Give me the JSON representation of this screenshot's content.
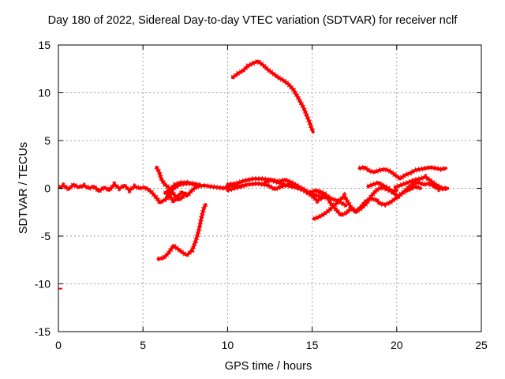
{
  "chart_data": {
    "type": "line",
    "title": "Day 180 of 2022, Sidereal Day-to-day VTEC variation (SDTVAR) for receiver nclf",
    "xlabel": "GPS time / hours",
    "ylabel": "SDTVAR / TECUs",
    "xlim": [
      0,
      25
    ],
    "ylim": [
      -15,
      15
    ],
    "x_ticks": [
      0,
      5,
      10,
      15,
      20,
      25
    ],
    "y_ticks": [
      -15,
      -10,
      -5,
      0,
      5,
      10,
      15
    ],
    "grid": true,
    "color": "#ff0000",
    "series": [
      {
        "name": "arc-main-0-6",
        "points": [
          [
            0.1,
            0.1
          ],
          [
            0.3,
            0.3
          ],
          [
            0.6,
            -0.1
          ],
          [
            0.9,
            0.4
          ],
          [
            1.2,
            0.1
          ],
          [
            1.5,
            0.3
          ],
          [
            1.8,
            0.0
          ],
          [
            2.1,
            0.2
          ],
          [
            2.4,
            -0.3
          ],
          [
            2.7,
            0.1
          ],
          [
            3.0,
            -0.2
          ],
          [
            3.3,
            0.4
          ],
          [
            3.6,
            0.0
          ],
          [
            3.9,
            0.3
          ],
          [
            4.2,
            -0.2
          ],
          [
            4.5,
            0.2
          ],
          [
            4.8,
            0.0
          ],
          [
            5.1,
            0.1
          ],
          [
            5.3,
            -0.1
          ],
          [
            5.5,
            -0.4
          ],
          [
            5.8,
            -1.0
          ],
          [
            6.0,
            -1.5
          ],
          [
            6.3,
            -1.2
          ],
          [
            6.6,
            -0.8
          ],
          [
            6.8,
            -1.4
          ],
          [
            7.0,
            -1.0
          ],
          [
            7.3,
            -0.4
          ],
          [
            7.6,
            -0.8
          ],
          [
            7.9,
            -0.2
          ],
          [
            8.2,
            0.2
          ],
          [
            8.6,
            0.3
          ],
          [
            9.0,
            0.2
          ],
          [
            9.4,
            0.1
          ],
          [
            9.8,
            0.0
          ],
          [
            10.2,
            0.3
          ],
          [
            10.6,
            0.2
          ],
          [
            11.0,
            0.3
          ]
        ]
      },
      {
        "name": "arc-5.8-upper",
        "points": [
          [
            5.8,
            2.2
          ],
          [
            5.95,
            1.7
          ],
          [
            6.1,
            0.9
          ],
          [
            6.3,
            0.4
          ],
          [
            6.5,
            0.1
          ],
          [
            6.7,
            -0.3
          ],
          [
            6.9,
            -0.8
          ],
          [
            7.1,
            -1.2
          ],
          [
            7.3,
            -1.0
          ],
          [
            7.5,
            -0.5
          ]
        ]
      },
      {
        "name": "arc-loop-6-8",
        "points": [
          [
            6.3,
            -0.5
          ],
          [
            6.6,
            -0.1
          ],
          [
            6.9,
            0.4
          ],
          [
            7.2,
            0.6
          ],
          [
            7.6,
            0.6
          ],
          [
            8.0,
            0.4
          ],
          [
            8.4,
            0.3
          ],
          [
            8.0,
            0.5
          ],
          [
            7.6,
            0.5
          ],
          [
            7.2,
            0.4
          ],
          [
            6.9,
            0.1
          ],
          [
            6.6,
            -0.4
          ],
          [
            6.4,
            -0.9
          ]
        ]
      },
      {
        "name": "arc-negative-6-9",
        "points": [
          [
            5.9,
            -7.4
          ],
          [
            6.2,
            -7.3
          ],
          [
            6.5,
            -6.8
          ],
          [
            6.8,
            -6.0
          ],
          [
            7.1,
            -6.4
          ],
          [
            7.4,
            -6.8
          ],
          [
            7.6,
            -7.0
          ],
          [
            7.9,
            -6.5
          ],
          [
            8.1,
            -5.6
          ],
          [
            8.3,
            -4.4
          ],
          [
            8.45,
            -3.1
          ],
          [
            8.6,
            -2.1
          ],
          [
            8.7,
            -1.7
          ]
        ]
      },
      {
        "name": "arc-high-10-15",
        "points": [
          [
            10.3,
            11.6
          ],
          [
            10.6,
            12.0
          ],
          [
            10.9,
            12.3
          ],
          [
            11.2,
            12.8
          ],
          [
            11.5,
            13.1
          ],
          [
            11.8,
            13.3
          ],
          [
            12.1,
            12.9
          ],
          [
            12.4,
            12.4
          ],
          [
            12.7,
            12.0
          ],
          [
            13.0,
            11.6
          ],
          [
            13.3,
            11.3
          ],
          [
            13.6,
            10.9
          ],
          [
            13.9,
            10.3
          ],
          [
            14.2,
            9.4
          ],
          [
            14.5,
            8.4
          ],
          [
            14.8,
            7.1
          ],
          [
            15.05,
            5.9
          ]
        ]
      },
      {
        "name": "arc-mid-10-17",
        "points": [
          [
            10.0,
            0.4
          ],
          [
            10.5,
            0.5
          ],
          [
            11.0,
            0.8
          ],
          [
            11.5,
            1.0
          ],
          [
            12.0,
            1.0
          ],
          [
            12.5,
            0.9
          ],
          [
            13.0,
            0.6
          ],
          [
            13.5,
            0.3
          ],
          [
            14.0,
            0.1
          ],
          [
            14.5,
            -0.2
          ],
          [
            15.0,
            -0.6
          ],
          [
            15.5,
            -0.9
          ],
          [
            16.0,
            -1.0
          ],
          [
            16.5,
            -1.3
          ],
          [
            17.0,
            -1.8
          ]
        ]
      },
      {
        "name": "arc-braid-a",
        "points": [
          [
            10.0,
            -0.2
          ],
          [
            10.6,
            0.1
          ],
          [
            11.2,
            0.4
          ],
          [
            11.8,
            0.5
          ],
          [
            12.4,
            0.3
          ],
          [
            12.8,
            -0.1
          ],
          [
            13.2,
            0.2
          ],
          [
            13.6,
            0.4
          ],
          [
            14.0,
            0.3
          ],
          [
            14.4,
            0.0
          ],
          [
            14.8,
            -0.5
          ],
          [
            15.2,
            -0.2
          ],
          [
            15.6,
            -0.6
          ],
          [
            16.0,
            -0.9
          ]
        ]
      },
      {
        "name": "arc-braid-b",
        "points": [
          [
            12.2,
            0.6
          ],
          [
            12.6,
            0.9
          ],
          [
            13.0,
            0.7
          ],
          [
            13.4,
            0.9
          ],
          [
            13.8,
            0.6
          ],
          [
            14.2,
            0.2
          ],
          [
            14.6,
            -0.3
          ],
          [
            15.0,
            -0.8
          ],
          [
            15.3,
            -1.3
          ],
          [
            15.6,
            -1.0
          ]
        ]
      },
      {
        "name": "arc-lower-15-18",
        "points": [
          [
            15.1,
            -3.2
          ],
          [
            15.4,
            -3.0
          ],
          [
            15.7,
            -2.7
          ],
          [
            16.0,
            -2.3
          ],
          [
            16.3,
            -1.8
          ],
          [
            16.6,
            -1.3
          ],
          [
            16.9,
            -0.8
          ],
          [
            17.1,
            -1.4
          ],
          [
            17.3,
            -2.0
          ],
          [
            17.6,
            -2.4
          ],
          [
            17.9,
            -2.1
          ],
          [
            18.2,
            -1.6
          ],
          [
            18.5,
            -0.8
          ],
          [
            18.8,
            -0.2
          ],
          [
            19.1,
            0.1
          ],
          [
            19.4,
            -0.1
          ],
          [
            19.7,
            -0.3
          ],
          [
            20.0,
            -0.2
          ]
        ]
      },
      {
        "name": "arc-low-16-18",
        "points": [
          [
            15.4,
            -0.3
          ],
          [
            15.8,
            -0.6
          ],
          [
            16.1,
            -1.6
          ],
          [
            16.4,
            -2.2
          ],
          [
            16.7,
            -2.8
          ],
          [
            17.0,
            -2.6
          ],
          [
            17.3,
            -2.1
          ],
          [
            17.6,
            -2.5
          ],
          [
            17.9,
            -1.9
          ],
          [
            18.2,
            -1.3
          ],
          [
            18.5,
            -1.1
          ],
          [
            18.8,
            -1.2
          ],
          [
            19.0,
            -1.6
          ],
          [
            19.3,
            -1.7
          ],
          [
            19.6,
            -1.5
          ],
          [
            19.9,
            -1.1
          ],
          [
            20.2,
            -0.7
          ],
          [
            20.5,
            -0.3
          ],
          [
            20.8,
            -0.1
          ],
          [
            21.1,
            0.2
          ],
          [
            21.4,
            0.0
          ]
        ]
      },
      {
        "name": "arc-upper-18-23",
        "points": [
          [
            17.8,
            2.1
          ],
          [
            18.1,
            2.2
          ],
          [
            18.4,
            1.8
          ],
          [
            18.7,
            1.7
          ],
          [
            19.0,
            1.9
          ],
          [
            19.3,
            2.0
          ],
          [
            19.6,
            1.8
          ],
          [
            19.9,
            1.4
          ],
          [
            20.2,
            1.0
          ],
          [
            20.5,
            1.4
          ],
          [
            20.8,
            1.6
          ],
          [
            21.1,
            1.9
          ],
          [
            21.4,
            2.0
          ],
          [
            21.7,
            2.1
          ],
          [
            22.0,
            2.2
          ],
          [
            22.3,
            2.1
          ],
          [
            22.6,
            2.0
          ],
          [
            22.9,
            2.1
          ]
        ]
      },
      {
        "name": "arc-upper-20-23",
        "points": [
          [
            19.9,
            0.1
          ],
          [
            20.2,
            0.3
          ],
          [
            20.5,
            0.5
          ],
          [
            20.8,
            0.7
          ],
          [
            21.1,
            0.9
          ],
          [
            21.4,
            1.0
          ],
          [
            21.7,
            1.2
          ],
          [
            22.0,
            0.8
          ],
          [
            22.3,
            0.4
          ],
          [
            22.6,
            0.1
          ],
          [
            22.9,
            -0.1
          ]
        ]
      },
      {
        "name": "arc-braid-c",
        "points": [
          [
            18.3,
            0.2
          ],
          [
            18.6,
            0.4
          ],
          [
            18.9,
            0.6
          ],
          [
            19.2,
            0.3
          ],
          [
            19.5,
            0.0
          ],
          [
            19.8,
            -0.5
          ],
          [
            20.1,
            -0.8
          ],
          [
            20.4,
            -0.4
          ],
          [
            20.7,
            0.1
          ],
          [
            21.0,
            0.5
          ],
          [
            21.3,
            0.6
          ],
          [
            21.6,
            0.4
          ],
          [
            21.9,
            0.5
          ],
          [
            22.2,
            0.2
          ],
          [
            22.5,
            -0.1
          ],
          [
            22.8,
            0.0
          ],
          [
            23.0,
            0.0
          ]
        ]
      },
      {
        "name": "outlier",
        "points": [
          [
            0.0,
            -10.5
          ]
        ]
      }
    ]
  }
}
